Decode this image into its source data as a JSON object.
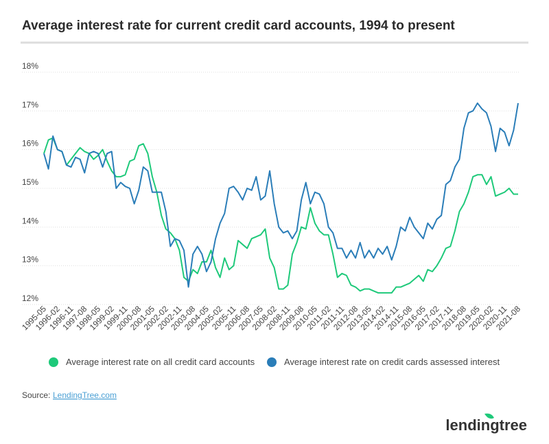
{
  "chart_data": {
    "type": "line",
    "title": "Average interest rate for current credit card accounts, 1994 to present",
    "categories": [
      "1995-05",
      null,
      null,
      "1996-02",
      null,
      null,
      "1996-11",
      null,
      null,
      "1997-08",
      null,
      null,
      "1998-05",
      null,
      null,
      "1999-02",
      null,
      null,
      "1999-11",
      null,
      null,
      "2000-08",
      null,
      null,
      "2001-05",
      null,
      null,
      "2002-02",
      null,
      null,
      "2002-11",
      null,
      null,
      "2003-08",
      null,
      null,
      "2004-05",
      null,
      null,
      "2005-02",
      null,
      null,
      "2005-11",
      null,
      null,
      "2006-08",
      null,
      null,
      "2007-05",
      null,
      null,
      "2008-02",
      null,
      null,
      "2008-11",
      null,
      null,
      "2009-08",
      null,
      null,
      "2010-05",
      null,
      null,
      "2011-02",
      null,
      null,
      "2011-11",
      null,
      null,
      "2012-08",
      null,
      null,
      "2013-05",
      null,
      null,
      "2014-02",
      null,
      null,
      "2014-11",
      null,
      null,
      "2015-08",
      null,
      null,
      "2016-05",
      null,
      null,
      "2017-02",
      null,
      null,
      "2017-11",
      null,
      null,
      "2018-08",
      null,
      null,
      "2019-05",
      null,
      null,
      "2020-02",
      null,
      null,
      "2020-11",
      null,
      null,
      "2021-08"
    ],
    "series": [
      {
        "name": "Average interest rate on all credit card accounts",
        "color": "#1ec97a",
        "values": [
          15.9,
          16.25,
          16.3,
          16.0,
          15.95,
          15.6,
          15.75,
          15.9,
          16.05,
          15.95,
          15.9,
          15.75,
          15.85,
          16.0,
          15.7,
          15.45,
          15.3,
          15.3,
          15.35,
          15.7,
          15.75,
          16.1,
          16.15,
          15.9,
          15.3,
          14.9,
          14.3,
          13.95,
          13.85,
          13.7,
          13.4,
          12.7,
          12.6,
          12.9,
          12.8,
          13.1,
          13.1,
          13.4,
          12.95,
          12.7,
          13.2,
          12.9,
          13.0,
          13.65,
          13.55,
          13.45,
          13.7,
          13.75,
          13.8,
          13.95,
          13.2,
          12.95,
          12.4,
          12.4,
          12.5,
          13.3,
          13.6,
          14.0,
          13.95,
          14.5,
          14.1,
          13.9,
          13.8,
          13.8,
          13.3,
          12.7,
          12.8,
          12.75,
          12.5,
          12.45,
          12.35,
          12.4,
          12.4,
          12.35,
          12.3,
          12.3,
          12.3,
          12.3,
          12.45,
          12.45,
          12.5,
          12.55,
          12.65,
          12.75,
          12.6,
          12.9,
          12.85,
          13.0,
          13.2,
          13.45,
          13.5,
          13.9,
          14.4,
          14.6,
          14.9,
          15.3,
          15.35,
          15.35,
          15.1,
          15.3,
          14.8,
          14.85,
          14.9,
          15.0,
          14.85,
          14.85
        ]
      },
      {
        "name": "Average interest rate on credit cards assessed interest",
        "color": "#2a7db8",
        "values": [
          15.9,
          15.5,
          16.35,
          16.0,
          15.95,
          15.6,
          15.55,
          15.8,
          15.75,
          15.4,
          15.9,
          15.95,
          15.9,
          15.55,
          15.9,
          15.95,
          15.0,
          15.15,
          15.05,
          15.0,
          14.6,
          14.95,
          15.55,
          15.45,
          14.9,
          14.9,
          14.9,
          14.4,
          13.5,
          13.7,
          13.65,
          13.4,
          12.45,
          13.3,
          13.5,
          13.3,
          12.85,
          13.1,
          13.7,
          14.1,
          14.35,
          15.0,
          15.05,
          14.9,
          14.7,
          15.0,
          14.95,
          15.3,
          14.7,
          14.8,
          15.45,
          14.6,
          14.0,
          13.85,
          13.9,
          13.7,
          13.9,
          14.7,
          15.15,
          14.6,
          14.9,
          14.85,
          14.6,
          14.0,
          13.85,
          13.45,
          13.45,
          13.2,
          13.4,
          13.2,
          13.6,
          13.2,
          13.4,
          13.2,
          13.45,
          13.3,
          13.5,
          13.15,
          13.5,
          14.0,
          13.9,
          14.25,
          14.0,
          13.85,
          13.7,
          14.1,
          13.95,
          14.2,
          14.3,
          15.1,
          15.2,
          15.55,
          15.75,
          16.55,
          16.95,
          17.0,
          17.2,
          17.05,
          16.95,
          16.6,
          15.95,
          16.55,
          16.45,
          16.1,
          16.5,
          17.2
        ]
      }
    ],
    "ylim": [
      12,
      18
    ],
    "yticks": [
      {
        "value": 12,
        "label": "12%"
      },
      {
        "value": 13,
        "label": "13%"
      },
      {
        "value": 14,
        "label": "14%"
      },
      {
        "value": 15,
        "label": "15%"
      },
      {
        "value": 16,
        "label": "16%"
      },
      {
        "value": 17,
        "label": "17%"
      },
      {
        "value": 18,
        "label": "18%"
      }
    ],
    "grid": true,
    "source_label": "Source:",
    "source": "LendingTree.com",
    "logo": "lendingtree"
  }
}
